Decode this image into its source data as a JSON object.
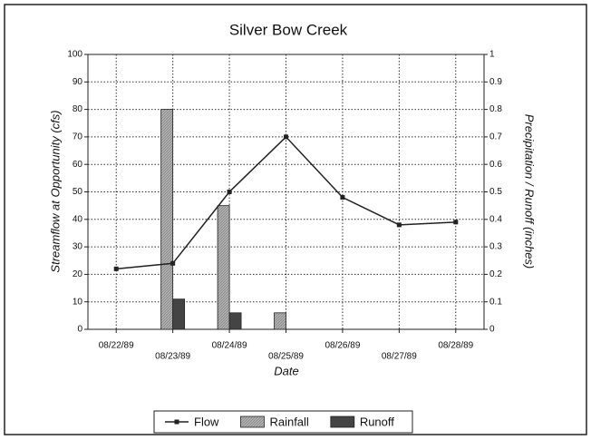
{
  "chart_data": {
    "type": "bar",
    "title": "Silver Bow Creek",
    "xlabel": "Date",
    "ylabel": "Streamflow at Opportunity (cfs)",
    "y2label": "Precipitation / Runoff (inches)",
    "categories": [
      "08/22/89",
      "08/23/89",
      "08/24/89",
      "08/25/89",
      "08/26/89",
      "08/27/89",
      "08/28/89"
    ],
    "series": [
      {
        "name": "Flow",
        "type": "line",
        "color": "#222222",
        "values": [
          22,
          24,
          50,
          70,
          48,
          38,
          39
        ]
      },
      {
        "name": "Rainfall",
        "type": "bar",
        "axis": "y2",
        "color": "#a8a8a8",
        "values": [
          0,
          0.8,
          0.45,
          0.06,
          0,
          0,
          0
        ]
      },
      {
        "name": "Runoff",
        "type": "bar",
        "axis": "y2",
        "color": "#444444",
        "values": [
          0,
          0.11,
          0.06,
          0,
          0,
          0,
          0
        ]
      }
    ],
    "ylim": [
      0,
      100
    ],
    "yticks": [
      0,
      10,
      20,
      30,
      40,
      50,
      60,
      70,
      80,
      90,
      100
    ],
    "y2lim": [
      0,
      1
    ],
    "y2ticks": [
      0,
      0.1,
      0.2,
      0.3,
      0.4,
      0.5,
      0.6,
      0.7,
      0.8,
      0.9,
      1
    ],
    "grid": true,
    "legend": "bottom"
  }
}
